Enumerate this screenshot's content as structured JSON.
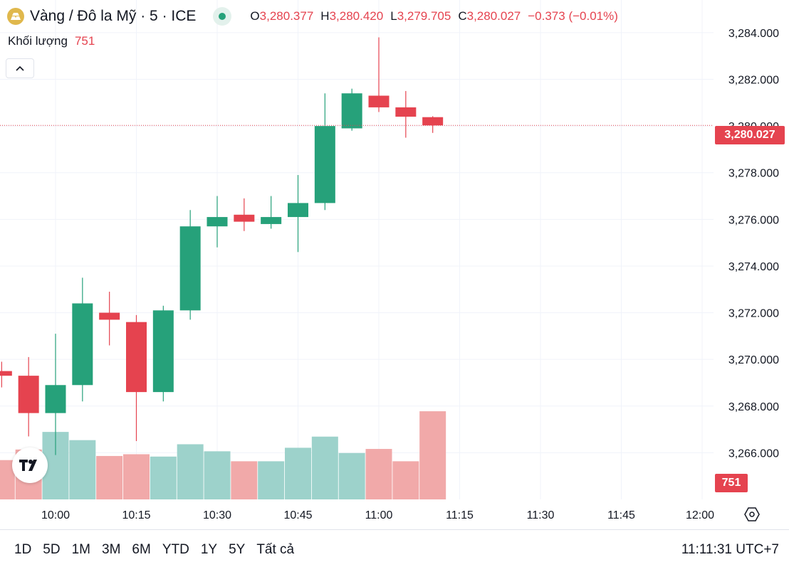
{
  "header": {
    "title": "Vàng / Đô la Mỹ · 5 · ICE",
    "ohlc": [
      {
        "k": "O",
        "v": "3,280.377"
      },
      {
        "k": "H",
        "v": "3,280.420"
      },
      {
        "k": "L",
        "v": "3,279.705"
      },
      {
        "k": "C",
        "v": "3,280.027"
      },
      {
        "k": "",
        "v": "−0.373 (−0.01%)"
      }
    ],
    "volume_label": "Khối lượng",
    "volume_value": "751"
  },
  "price_tag": "3,280.027",
  "volume_tag": "751",
  "bottom": {
    "periods": [
      "1D",
      "5D",
      "1M",
      "3M",
      "6M",
      "YTD",
      "1Y",
      "5Y",
      "Tất cả"
    ],
    "clock": "11:11:31 UTC+7"
  },
  "colors": {
    "up": "#26a17a",
    "down": "#e5434f",
    "vol_up": "#9dd2cb",
    "vol_down": "#f1a9a9",
    "grid": "#f0f3fa"
  },
  "icons": [
    "gold-logo-icon",
    "live-dot-icon",
    "chevron-up-icon",
    "tradingview-logo-icon",
    "settings-hexagon-icon"
  ],
  "chart_data": {
    "type": "candlestick",
    "y_ticks": [
      "3,284.000",
      "3,282.000",
      "3,280.000",
      "3,278.000",
      "3,276.000",
      "3,274.000",
      "3,272.000",
      "3,270.000",
      "3,268.000",
      "3,266.000"
    ],
    "y_tick_values": [
      3284,
      3282,
      3280,
      3278,
      3276,
      3274,
      3272,
      3270,
      3268,
      3266
    ],
    "ylim": [
      3264.0,
      3285.4
    ],
    "x_ticks": [
      "10:00",
      "10:15",
      "10:30",
      "10:45",
      "11:00",
      "11:15",
      "11:30",
      "11:45",
      "12:00"
    ],
    "x_tick_values": [
      600,
      615,
      630,
      645,
      660,
      675,
      690,
      705,
      720
    ],
    "current_price": 3280.027,
    "candles": [
      {
        "t": 590,
        "o": 3269.5,
        "h": 3269.9,
        "l": 3268.8,
        "c": 3269.3,
        "v": 335
      },
      {
        "t": 595,
        "o": 3269.3,
        "h": 3270.1,
        "l": 3266.7,
        "c": 3267.7,
        "v": 425
      },
      {
        "t": 600,
        "o": 3267.7,
        "h": 3271.1,
        "l": 3265.9,
        "c": 3268.9,
        "v": 575
      },
      {
        "t": 605,
        "o": 3268.9,
        "h": 3273.5,
        "l": 3268.2,
        "c": 3272.4,
        "v": 505
      },
      {
        "t": 610,
        "o": 3272.0,
        "h": 3272.9,
        "l": 3270.6,
        "c": 3271.7,
        "v": 370
      },
      {
        "t": 615,
        "o": 3271.6,
        "h": 3271.9,
        "l": 3266.5,
        "c": 3268.6,
        "v": 385
      },
      {
        "t": 620,
        "o": 3268.6,
        "h": 3272.3,
        "l": 3268.2,
        "c": 3272.1,
        "v": 365
      },
      {
        "t": 625,
        "o": 3272.1,
        "h": 3276.4,
        "l": 3271.7,
        "c": 3275.7,
        "v": 470
      },
      {
        "t": 630,
        "o": 3275.7,
        "h": 3277.0,
        "l": 3274.8,
        "c": 3276.1,
        "v": 410
      },
      {
        "t": 635,
        "o": 3276.2,
        "h": 3276.9,
        "l": 3275.5,
        "c": 3275.9,
        "v": 325
      },
      {
        "t": 640,
        "o": 3275.8,
        "h": 3277.0,
        "l": 3275.6,
        "c": 3276.1,
        "v": 325
      },
      {
        "t": 645,
        "o": 3276.1,
        "h": 3277.9,
        "l": 3274.6,
        "c": 3276.7,
        "v": 440
      },
      {
        "t": 650,
        "o": 3276.7,
        "h": 3281.4,
        "l": 3276.4,
        "c": 3280.0,
        "v": 535
      },
      {
        "t": 655,
        "o": 3279.9,
        "h": 3281.6,
        "l": 3279.8,
        "c": 3281.4,
        "v": 395
      },
      {
        "t": 660,
        "o": 3281.3,
        "h": 3283.8,
        "l": 3280.6,
        "c": 3280.8,
        "v": 430
      },
      {
        "t": 665,
        "o": 3280.8,
        "h": 3281.5,
        "l": 3279.5,
        "c": 3280.4,
        "v": 325
      },
      {
        "t": 670,
        "o": 3280.38,
        "h": 3280.42,
        "l": 3279.705,
        "c": 3280.027,
        "v": 751
      }
    ]
  }
}
